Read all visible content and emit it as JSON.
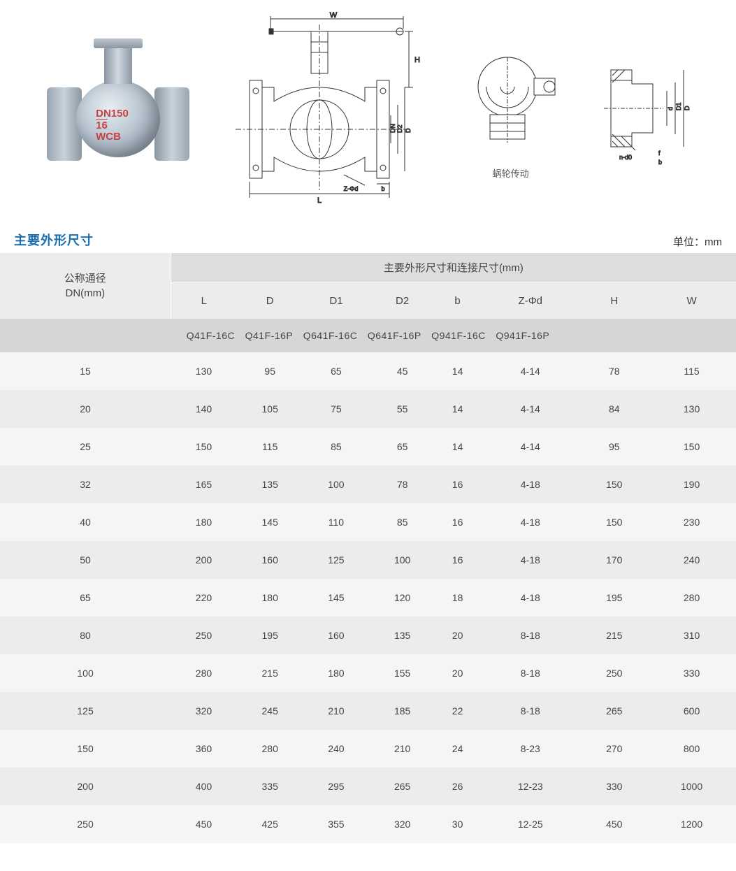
{
  "colors": {
    "title_color": "#1a6fb0",
    "header_bg_dark": "#dcdedf",
    "header_bg_light": "#ececed",
    "model_row_bg": "#d4d6d7",
    "row_odd_bg": "#ececed",
    "row_even_bg": "#f5f5f6",
    "text_color": "#444444",
    "valve_label_color": "#c84040"
  },
  "typography": {
    "title_fontsize": 18,
    "header_fontsize": 15,
    "body_fontsize": 14,
    "caption_fontsize": 13
  },
  "valve_photo": {
    "label_line1": "DN150",
    "label_line2": "16",
    "label_line3": "WCB"
  },
  "tech_drawing": {
    "dim_labels": [
      "W",
      "H",
      "L",
      "D",
      "D2",
      "DN",
      "b",
      "Z-Φd"
    ]
  },
  "side_drawing_caption": "蜗轮传动",
  "flange_dim_labels": [
    "D",
    "D1",
    "d",
    "n-d0",
    "f",
    "b"
  ],
  "section_title": "主要外形尺寸",
  "unit_label": "单位：mm",
  "table": {
    "header_dn_line1": "公称通径",
    "header_dn_line2": "DN(mm)",
    "header_group": "主要外形尺寸和连接尺寸(mm)",
    "columns": [
      "L",
      "D",
      "D1",
      "D2",
      "b",
      "Z-Φd",
      "H",
      "W"
    ],
    "model_codes": [
      "Q41F-16C",
      "Q41F-16P",
      "Q641F-16C",
      "Q641F-16P",
      "Q941F-16C",
      "Q941F-16P"
    ],
    "rows": [
      {
        "dn": "15",
        "L": "130",
        "D": "95",
        "D1": "65",
        "D2": "45",
        "b": "14",
        "Zd": "4-14",
        "H": "78",
        "W": "115"
      },
      {
        "dn": "20",
        "L": "140",
        "D": "105",
        "D1": "75",
        "D2": "55",
        "b": "14",
        "Zd": "4-14",
        "H": "84",
        "W": "130"
      },
      {
        "dn": "25",
        "L": "150",
        "D": "115",
        "D1": "85",
        "D2": "65",
        "b": "14",
        "Zd": "4-14",
        "H": "95",
        "W": "150"
      },
      {
        "dn": "32",
        "L": "165",
        "D": "135",
        "D1": "100",
        "D2": "78",
        "b": "16",
        "Zd": "4-18",
        "H": "150",
        "W": "190"
      },
      {
        "dn": "40",
        "L": "180",
        "D": "145",
        "D1": "110",
        "D2": "85",
        "b": "16",
        "Zd": "4-18",
        "H": "150",
        "W": "230"
      },
      {
        "dn": "50",
        "L": "200",
        "D": "160",
        "D1": "125",
        "D2": "100",
        "b": "16",
        "Zd": "4-18",
        "H": "170",
        "W": "240"
      },
      {
        "dn": "65",
        "L": "220",
        "D": "180",
        "D1": "145",
        "D2": "120",
        "b": "18",
        "Zd": "4-18",
        "H": "195",
        "W": "280"
      },
      {
        "dn": "80",
        "L": "250",
        "D": "195",
        "D1": "160",
        "D2": "135",
        "b": "20",
        "Zd": "8-18",
        "H": "215",
        "W": "310"
      },
      {
        "dn": "100",
        "L": "280",
        "D": "215",
        "D1": "180",
        "D2": "155",
        "b": "20",
        "Zd": "8-18",
        "H": "250",
        "W": "330"
      },
      {
        "dn": "125",
        "L": "320",
        "D": "245",
        "D1": "210",
        "D2": "185",
        "b": "22",
        "Zd": "8-18",
        "H": "265",
        "W": "600"
      },
      {
        "dn": "150",
        "L": "360",
        "D": "280",
        "D1": "240",
        "D2": "210",
        "b": "24",
        "Zd": "8-23",
        "H": "270",
        "W": "800"
      },
      {
        "dn": "200",
        "L": "400",
        "D": "335",
        "D1": "295",
        "D2": "265",
        "b": "26",
        "Zd": "12-23",
        "H": "330",
        "W": "1000"
      },
      {
        "dn": "250",
        "L": "450",
        "D": "425",
        "D1": "355",
        "D2": "320",
        "b": "30",
        "Zd": "12-25",
        "H": "450",
        "W": "1200"
      }
    ]
  }
}
